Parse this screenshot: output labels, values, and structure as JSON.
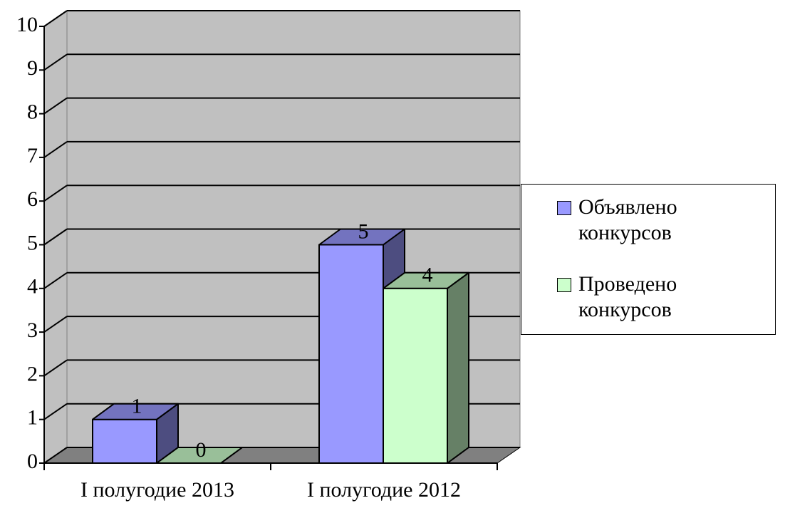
{
  "chart_data": {
    "type": "bar3d",
    "categories": [
      "I полугодие 2013",
      "I полугодие 2012"
    ],
    "series": [
      {
        "name": "Объявлено конкурсов",
        "color": "#9999ff",
        "values": [
          1,
          5
        ]
      },
      {
        "name": "Проведено конкурсов",
        "color": "#ccffcc",
        "values": [
          0,
          4
        ]
      }
    ],
    "ylim": [
      0,
      10
    ],
    "yticks": [
      0,
      1,
      2,
      3,
      4,
      5,
      6,
      7,
      8,
      9,
      10
    ],
    "grid": true,
    "legend": "right"
  }
}
